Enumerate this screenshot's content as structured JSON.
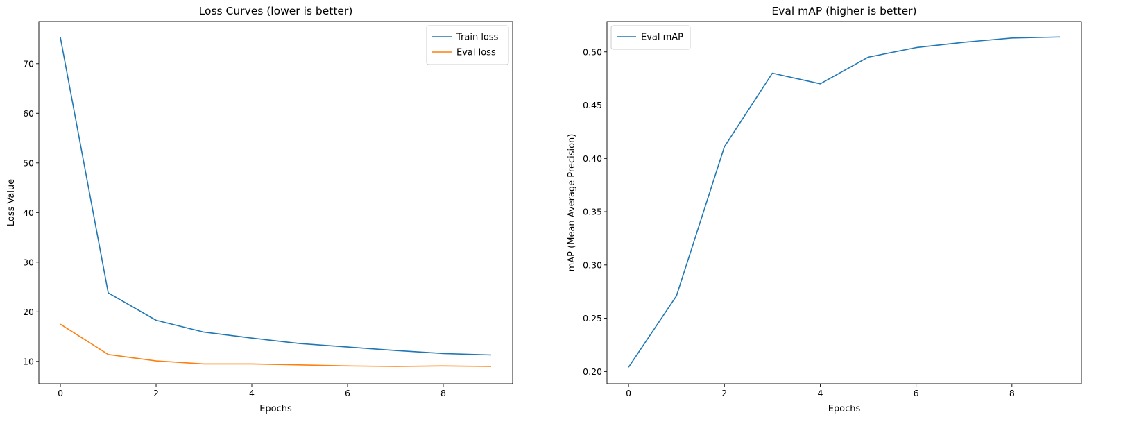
{
  "chart_data": [
    {
      "type": "line",
      "title": "Loss Curves (lower is better)",
      "xlabel": "Epochs",
      "ylabel": "Loss Value",
      "x": [
        0,
        1,
        2,
        3,
        4,
        5,
        6,
        7,
        8,
        9
      ],
      "xlim": [
        -0.45,
        9.45
      ],
      "ylim": [
        5.5,
        78.5
      ],
      "xticks": [
        0,
        2,
        4,
        6,
        8
      ],
      "yticks": [
        10,
        20,
        30,
        40,
        50,
        60,
        70
      ],
      "legend": "top-right",
      "grid": false,
      "series": [
        {
          "name": "Train loss",
          "color": "#1f77b4",
          "values": [
            75.3,
            23.8,
            18.3,
            15.9,
            14.7,
            13.6,
            12.9,
            12.2,
            11.6,
            11.3
          ]
        },
        {
          "name": "Eval loss",
          "color": "#ff7f0e",
          "values": [
            17.5,
            11.4,
            10.1,
            9.5,
            9.5,
            9.3,
            9.1,
            9.0,
            9.1,
            9.0
          ]
        }
      ]
    },
    {
      "type": "line",
      "title": "Eval mAP (higher is better)",
      "xlabel": "Epochs",
      "ylabel": "mAP (Mean Average Precision)",
      "x": [
        0,
        1,
        2,
        3,
        4,
        5,
        6,
        7,
        8,
        9
      ],
      "xlim": [
        -0.45,
        9.45
      ],
      "ylim": [
        0.1885,
        0.5285
      ],
      "xticks": [
        0,
        2,
        4,
        6,
        8
      ],
      "yticks": [
        0.2,
        0.25,
        0.3,
        0.35,
        0.4,
        0.45,
        0.5
      ],
      "ytick_labels": [
        "0.20",
        "0.25",
        "0.30",
        "0.35",
        "0.40",
        "0.45",
        "0.50"
      ],
      "legend": "top-left",
      "grid": false,
      "series": [
        {
          "name": "Eval mAP",
          "color": "#1f77b4",
          "values": [
            0.204,
            0.271,
            0.411,
            0.48,
            0.47,
            0.495,
            0.504,
            0.509,
            0.513,
            0.514
          ]
        }
      ]
    }
  ]
}
